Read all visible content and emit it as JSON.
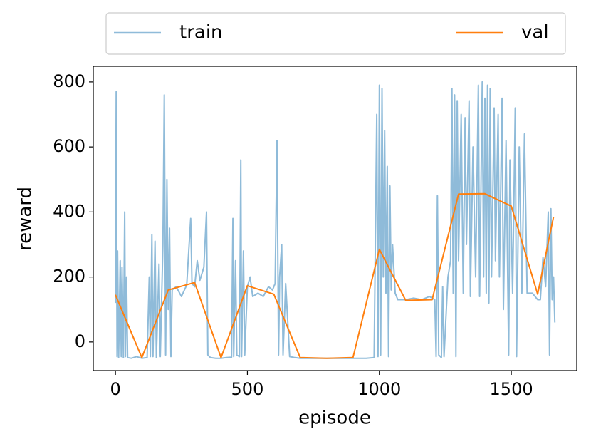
{
  "chart_data": {
    "type": "line",
    "x_label": "episode",
    "y_label": "reward",
    "xlim": [
      -84,
      1748
    ],
    "ylim": [
      -88,
      848
    ],
    "xticks": [
      0,
      500,
      1000,
      1500
    ],
    "yticks": [
      0,
      200,
      400,
      600,
      800
    ],
    "legend": "top",
    "series": [
      {
        "name": "train",
        "color": "#8fbbd9",
        "x": [
          0,
          3,
          6,
          8,
          12,
          18,
          22,
          25,
          30,
          35,
          38,
          42,
          46,
          60,
          80,
          100,
          120,
          128,
          132,
          138,
          142,
          150,
          155,
          165,
          170,
          180,
          185,
          190,
          195,
          200,
          205,
          210,
          215,
          230,
          250,
          270,
          285,
          290,
          300,
          310,
          320,
          335,
          345,
          350,
          360,
          380,
          400,
          420,
          440,
          445,
          448,
          455,
          460,
          470,
          475,
          478,
          485,
          490,
          500,
          510,
          520,
          540,
          560,
          580,
          595,
          605,
          612,
          618,
          622,
          630,
          635,
          645,
          660,
          680,
          700,
          750,
          800,
          850,
          900,
          950,
          980,
          990,
          995,
          1000,
          1005,
          1010,
          1015,
          1020,
          1025,
          1030,
          1035,
          1040,
          1045,
          1050,
          1060,
          1070,
          1100,
          1130,
          1160,
          1190,
          1210,
          1215,
          1220,
          1225,
          1235,
          1240,
          1245,
          1260,
          1270,
          1275,
          1280,
          1285,
          1290,
          1295,
          1300,
          1310,
          1318,
          1325,
          1330,
          1340,
          1345,
          1355,
          1365,
          1375,
          1380,
          1390,
          1395,
          1400,
          1405,
          1410,
          1415,
          1420,
          1425,
          1435,
          1440,
          1450,
          1455,
          1465,
          1470,
          1480,
          1490,
          1495,
          1505,
          1515,
          1520,
          1530,
          1540,
          1550,
          1560,
          1580,
          1600,
          1610,
          1620,
          1630,
          1640,
          1645,
          1650,
          1655,
          1660,
          1665
        ],
        "values": [
          120,
          770,
          -45,
          280,
          -48,
          250,
          -45,
          230,
          -48,
          400,
          -45,
          200,
          -48,
          -50,
          -45,
          -50,
          -48,
          200,
          -45,
          330,
          -45,
          310,
          -48,
          240,
          -45,
          300,
          760,
          -40,
          500,
          100,
          350,
          -45,
          160,
          170,
          140,
          175,
          380,
          180,
          170,
          250,
          190,
          230,
          400,
          -40,
          -48,
          -50,
          -50,
          -48,
          -47,
          380,
          -45,
          250,
          -40,
          -45,
          560,
          -45,
          280,
          -40,
          170,
          200,
          140,
          150,
          140,
          170,
          160,
          180,
          620,
          -40,
          200,
          300,
          -40,
          180,
          -45,
          -48,
          -50,
          -50,
          -50,
          -50,
          -50,
          -50,
          -48,
          700,
          -45,
          790,
          -40,
          780,
          200,
          650,
          150,
          540,
          -45,
          480,
          160,
          300,
          150,
          130,
          130,
          135,
          130,
          140,
          130,
          -45,
          450,
          -40,
          -48,
          170,
          -45,
          200,
          250,
          780,
          150,
          760,
          -45,
          740,
          250,
          700,
          150,
          690,
          300,
          740,
          140,
          600,
          200,
          790,
          140,
          800,
          200,
          750,
          150,
          790,
          120,
          780,
          200,
          720,
          250,
          700,
          200,
          750,
          100,
          620,
          -40,
          560,
          150,
          720,
          -45,
          600,
          150,
          640,
          150,
          150,
          130,
          130,
          260,
          170,
          400,
          -40,
          410,
          130,
          200,
          60
        ]
      },
      {
        "name": "val",
        "color": "#ff7f0e",
        "x": [
          0,
          100,
          200,
          300,
          400,
          500,
          600,
          700,
          800,
          900,
          1000,
          1100,
          1200,
          1300,
          1400,
          1500,
          1600,
          1660
        ],
        "values": [
          145,
          -48,
          160,
          183,
          -48,
          173,
          147,
          -48,
          -50,
          -48,
          285,
          128,
          130,
          455,
          456,
          418,
          147,
          385
        ]
      }
    ]
  }
}
